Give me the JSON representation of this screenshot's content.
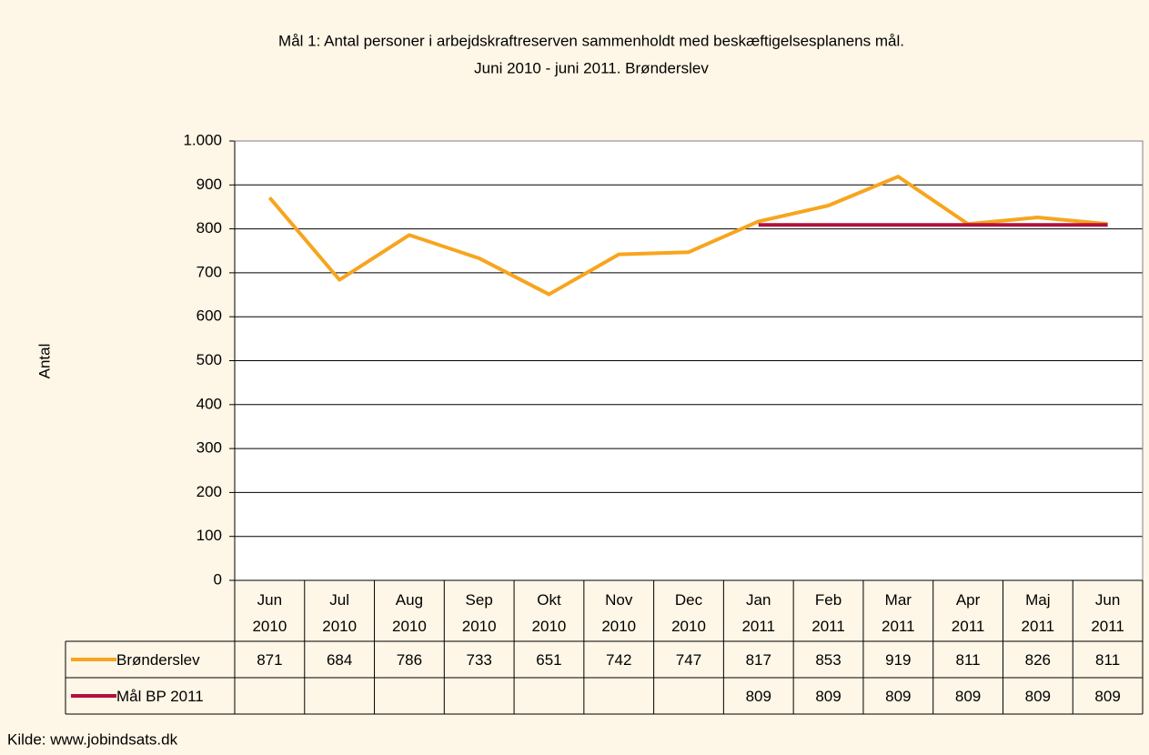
{
  "chart_data": {
    "type": "line",
    "title": "Mål 1: Antal personer i arbejdskraftreserven sammenholdt med beskæftigelsesplanens mål.",
    "subtitle": "Juni 2010 - juni 2011. Brønderslev",
    "y_label": "Antal",
    "source": "Kilde: www.jobindsats.dk",
    "categories": [
      "Jun 2010",
      "Jul 2010",
      "Aug 2010",
      "Sep 2010",
      "Okt 2010",
      "Nov 2010",
      "Dec 2010",
      "Jan 2011",
      "Feb 2011",
      "Mar 2011",
      "Apr 2011",
      "Maj 2011",
      "Jun 2011"
    ],
    "series": [
      {
        "name": "Brønderslev",
        "color": "#F7A51E",
        "values": [
          871,
          684,
          786,
          733,
          651,
          742,
          747,
          817,
          853,
          919,
          811,
          826,
          811
        ]
      },
      {
        "name": "Mål BP 2011",
        "color": "#B1123F",
        "values": [
          null,
          null,
          null,
          null,
          null,
          null,
          null,
          809,
          809,
          809,
          809,
          809,
          809
        ]
      }
    ],
    "ylim": [
      0,
      1000
    ],
    "yticks": [
      0,
      100,
      200,
      300,
      400,
      500,
      600,
      700,
      800,
      900,
      {
        "value": 1000,
        "label": "1.000"
      }
    ],
    "grid": true
  }
}
